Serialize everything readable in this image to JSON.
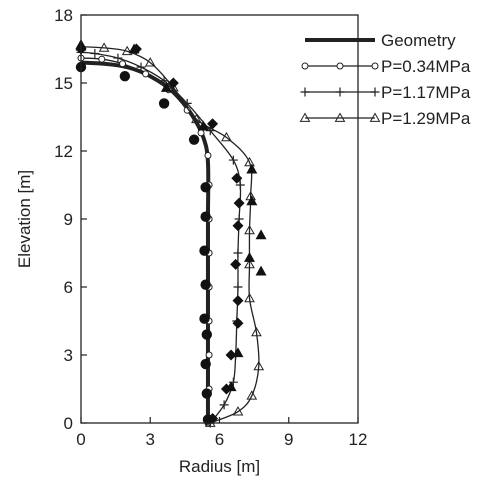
{
  "chart_data": {
    "type": "line",
    "xlabel": "Radius [m]",
    "ylabel": "Elevation [m]",
    "xlim": [
      0,
      12
    ],
    "ylim": [
      0,
      18
    ],
    "x_ticks": [
      "0",
      "3",
      "6",
      "9",
      "12"
    ],
    "y_ticks": [
      "0",
      "3",
      "6",
      "9",
      "12",
      "15",
      "18"
    ],
    "grid": false,
    "legend_position": "top-right",
    "series": [
      {
        "name": "Geometry",
        "marker": "none",
        "line_weight": "heavy",
        "points": [
          [
            5.5,
            0
          ],
          [
            5.5,
            3
          ],
          [
            5.5,
            6
          ],
          [
            5.5,
            9
          ],
          [
            5.5,
            11.5
          ],
          [
            5.3,
            12.6
          ],
          [
            4.8,
            13.6
          ],
          [
            4.0,
            14.6
          ],
          [
            3.0,
            15.3
          ],
          [
            2.0,
            15.7
          ],
          [
            1.0,
            15.85
          ],
          [
            0,
            15.9
          ]
        ]
      },
      {
        "name": "P=0.34MPa",
        "marker": "circle-open",
        "points": [
          [
            5.5,
            0
          ],
          [
            5.55,
            1.5
          ],
          [
            5.55,
            3
          ],
          [
            5.55,
            4.5
          ],
          [
            5.55,
            6
          ],
          [
            5.55,
            7.5
          ],
          [
            5.55,
            9
          ],
          [
            5.55,
            10.5
          ],
          [
            5.5,
            11.8
          ],
          [
            5.2,
            12.8
          ],
          [
            4.6,
            13.8
          ],
          [
            3.8,
            14.7
          ],
          [
            2.8,
            15.4
          ],
          [
            1.8,
            15.85
          ],
          [
            0.9,
            16.05
          ],
          [
            0,
            16.1
          ]
        ]
      },
      {
        "name": "P=1.17MPa",
        "marker": "cross",
        "points": [
          [
            5.6,
            0
          ],
          [
            6.2,
            0.8
          ],
          [
            6.6,
            1.8
          ],
          [
            6.7,
            3
          ],
          [
            6.75,
            4.5
          ],
          [
            6.8,
            6
          ],
          [
            6.8,
            7.5
          ],
          [
            6.85,
            9
          ],
          [
            6.9,
            10.5
          ],
          [
            6.6,
            11.6
          ],
          [
            5.6,
            12.9
          ],
          [
            4.6,
            14.1
          ],
          [
            3.6,
            15.1
          ],
          [
            2.6,
            15.7
          ],
          [
            1.6,
            16.1
          ],
          [
            0.6,
            16.3
          ],
          [
            0,
            16.35
          ]
        ]
      },
      {
        "name": "P=1.29MPa",
        "marker": "triangle",
        "points": [
          [
            5.6,
            0
          ],
          [
            6.8,
            0.5
          ],
          [
            7.4,
            1.2
          ],
          [
            7.7,
            2.5
          ],
          [
            7.6,
            4.0
          ],
          [
            7.3,
            5.5
          ],
          [
            7.3,
            7
          ],
          [
            7.3,
            8.5
          ],
          [
            7.35,
            10
          ],
          [
            7.3,
            11.5
          ],
          [
            6.3,
            12.6
          ],
          [
            5.0,
            13.4
          ],
          [
            4.0,
            14.8
          ],
          [
            3.0,
            15.9
          ],
          [
            2.0,
            16.4
          ],
          [
            1.0,
            16.55
          ],
          [
            0,
            16.6
          ]
        ]
      },
      {
        "name": "",
        "marker": "filled-circle",
        "points": [
          [
            5.5,
            0.15
          ],
          [
            5.45,
            1.3
          ],
          [
            5.4,
            2.6
          ],
          [
            5.45,
            3.9
          ],
          [
            5.35,
            4.6
          ],
          [
            5.4,
            6.1
          ],
          [
            5.35,
            7.6
          ],
          [
            5.4,
            9.1
          ],
          [
            5.4,
            10.4
          ],
          [
            4.9,
            12.5
          ],
          [
            3.6,
            14.1
          ],
          [
            1.9,
            15.3
          ],
          [
            0,
            15.7
          ]
        ]
      },
      {
        "name": "",
        "marker": "filled-diamond",
        "points": [
          [
            5.7,
            0.2
          ],
          [
            6.3,
            1.5
          ],
          [
            6.5,
            3.0
          ],
          [
            6.8,
            4.4
          ],
          [
            6.8,
            5.4
          ],
          [
            6.7,
            7.0
          ],
          [
            6.8,
            8.7
          ],
          [
            6.85,
            9.7
          ],
          [
            6.75,
            10.8
          ],
          [
            5.7,
            13.2
          ],
          [
            4.0,
            15.0
          ],
          [
            2.4,
            16.5
          ],
          [
            0,
            16.5
          ]
        ]
      },
      {
        "name": "",
        "marker": "filled-triangle",
        "points": [
          [
            6.5,
            1.6
          ],
          [
            6.8,
            3.1
          ],
          [
            7.8,
            6.7
          ],
          [
            7.3,
            7.3
          ],
          [
            7.8,
            8.3
          ],
          [
            7.4,
            9.8
          ],
          [
            7.4,
            11.2
          ],
          [
            5.3,
            13.1
          ],
          [
            3.7,
            14.8
          ],
          [
            2.3,
            16.5
          ],
          [
            0,
            16.7
          ]
        ]
      }
    ]
  }
}
